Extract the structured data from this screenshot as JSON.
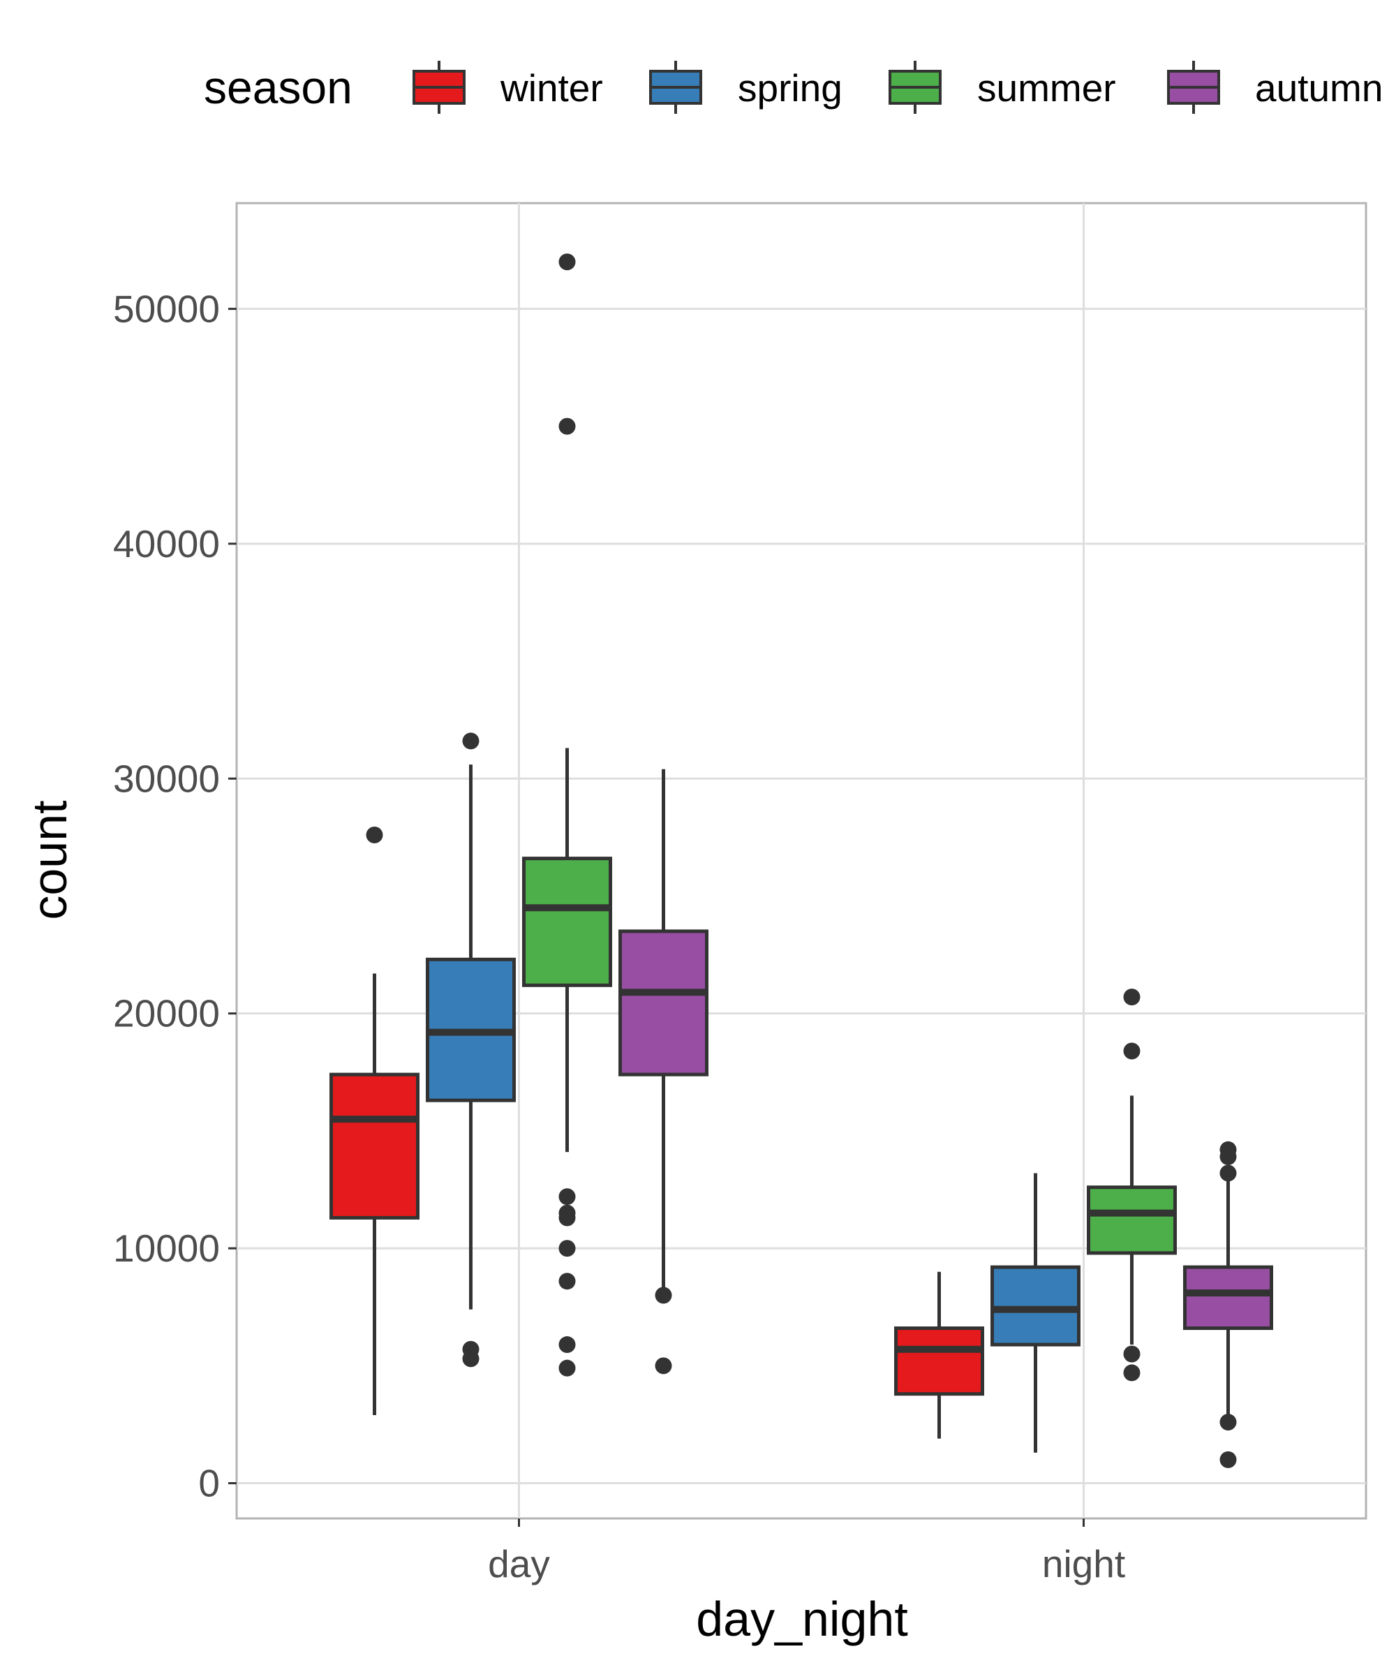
{
  "chart_data": {
    "type": "boxplot",
    "title": "",
    "xlabel": "day_night",
    "ylabel": "count",
    "categories": [
      "day",
      "night"
    ],
    "ylim": [
      -1500,
      54500
    ],
    "yticks": [
      0,
      10000,
      20000,
      30000,
      40000,
      50000
    ],
    "ytick_labels": [
      "0",
      "10000",
      "20000",
      "30000",
      "40000",
      "50000"
    ],
    "grid": true,
    "legend": {
      "title": "season",
      "position": "top",
      "entries": [
        "winter",
        "spring",
        "summer",
        "autumn"
      ]
    },
    "series": [
      {
        "name": "winter",
        "color": "#E41A1C",
        "boxes": [
          {
            "category": "day",
            "whisker_low": 2900,
            "q1": 11300,
            "median": 15500,
            "q3": 17400,
            "whisker_high": 21700,
            "outliers": [
              27600
            ]
          },
          {
            "category": "night",
            "whisker_low": 1900,
            "q1": 3800,
            "median": 5700,
            "q3": 6600,
            "whisker_high": 9000,
            "outliers": []
          }
        ]
      },
      {
        "name": "spring",
        "color": "#377EB8",
        "boxes": [
          {
            "category": "day",
            "whisker_low": 7400,
            "q1": 16300,
            "median": 19200,
            "q3": 22300,
            "whisker_high": 30600,
            "outliers": [
              31600,
              5700,
              5300
            ]
          },
          {
            "category": "night",
            "whisker_low": 1300,
            "q1": 5900,
            "median": 7400,
            "q3": 9200,
            "whisker_high": 13200,
            "outliers": []
          }
        ]
      },
      {
        "name": "summer",
        "color": "#4DAF4A",
        "boxes": [
          {
            "category": "day",
            "whisker_low": 14100,
            "q1": 21200,
            "median": 24500,
            "q3": 26600,
            "whisker_high": 31300,
            "outliers": [
              52000,
              45000,
              12200,
              11500,
              11300,
              10000,
              8600,
              5900,
              4900
            ]
          },
          {
            "category": "night",
            "whisker_low": 5900,
            "q1": 9800,
            "median": 11500,
            "q3": 12600,
            "whisker_high": 16500,
            "outliers": [
              20700,
              18400,
              5500,
              4700
            ]
          }
        ]
      },
      {
        "name": "autumn",
        "color": "#984EA3",
        "boxes": [
          {
            "category": "day",
            "whisker_low": 8000,
            "q1": 17400,
            "median": 20900,
            "q3": 23500,
            "whisker_high": 30400,
            "outliers": [
              8000,
              5000
            ]
          },
          {
            "category": "night",
            "whisker_low": 2700,
            "q1": 6600,
            "median": 8100,
            "q3": 9200,
            "whisker_high": 13300,
            "outliers": [
              14200,
              13900,
              13200,
              2600,
              1000
            ]
          }
        ]
      }
    ]
  }
}
